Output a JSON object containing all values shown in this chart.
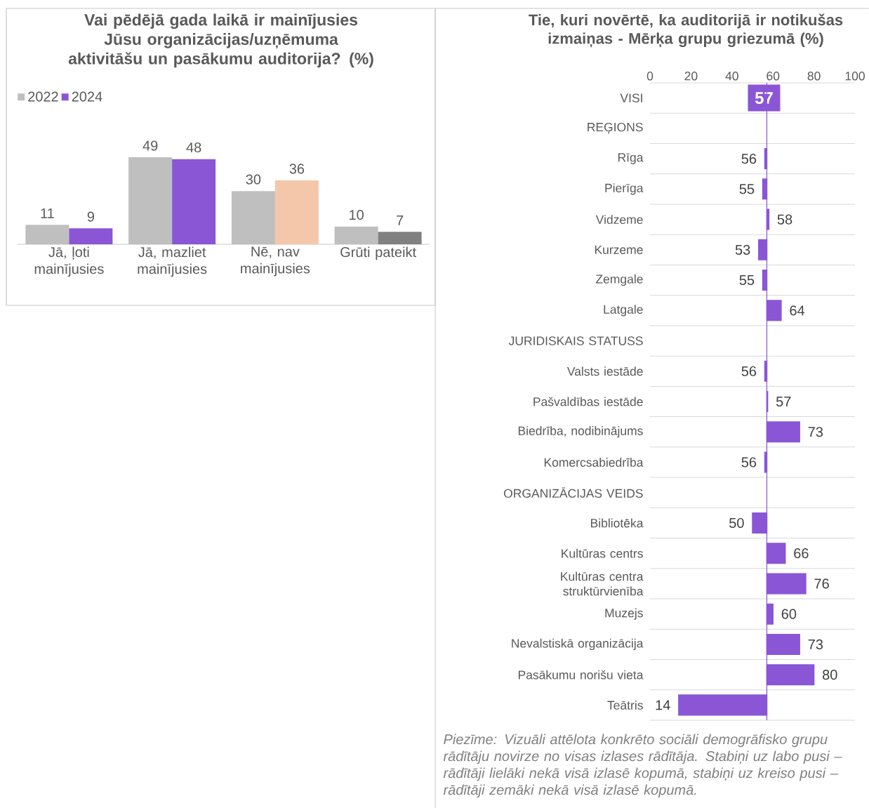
{
  "chart_data": [
    {
      "type": "bar",
      "title": "Vai pēdējā gada laikā ir mainījusies Jūsu organizācijas/uzņēmuma aktivitāšu un pasākumu auditorija? (%)",
      "categories": [
        "Jā, ļoti mainījusies",
        "Jā, mazliet mainījusies",
        "Nē, nav mainījusies",
        "Grūti pateikt"
      ],
      "series": [
        {
          "name": "2022",
          "color": "#bfbfbf",
          "colors": [
            "#bfbfbf",
            "#bfbfbf",
            "#bfbfbf",
            "#bfbfbf"
          ],
          "values": [
            11,
            49,
            30,
            10
          ]
        },
        {
          "name": "2024",
          "color": "#8a56d6",
          "colors": [
            "#8a56d6",
            "#8a56d6",
            "#f4c6aa",
            "#808080"
          ],
          "values": [
            9,
            48,
            36,
            7
          ]
        }
      ],
      "data_labels": true,
      "legend": "top left"
    },
    {
      "type": "bar",
      "orientation": "horizontal",
      "title": "Tie, kuri novērtē, ka auditorijā ir notikušas izmaiņas - Mērķa grupu griezumā (%)",
      "categories": [
        "VISI",
        "REĢIONS",
        "Rīga",
        "Pierīga",
        "Vidzeme",
        "Kurzeme",
        "Zemgale",
        "Latgale",
        "JURIDISKAIS STATUSS",
        "Valsts iestāde",
        "Pašvaldības iestāde",
        "Biedrība, nodibinājums",
        "Komercsabiedrība",
        "ORGANIZĀCIJAS VEIDS",
        "Bibliotēka",
        "Kultūras centrs",
        "Kultūras centra struktūrvienība",
        "Muzejs",
        "Nevalstiskā organizācija",
        "Pasākumu norišu vieta",
        "Teātris"
      ],
      "base": [
        null,
        null,
        57,
        57,
        57,
        57,
        57,
        57,
        null,
        57,
        57,
        57,
        57,
        null,
        57,
        57,
        57,
        57,
        57,
        57,
        57
      ],
      "values": [
        null,
        null,
        -1,
        -2,
        1,
        -4,
        -2,
        7,
        null,
        -1,
        0.4,
        16,
        -1,
        null,
        -7,
        9,
        19,
        3,
        16,
        23,
        -43
      ],
      "value_labels": [
        "57",
        null,
        "56",
        "55",
        "58",
        "53",
        "55",
        "64",
        null,
        "56",
        "57",
        "73",
        "56",
        null,
        "50",
        "66",
        "76",
        "60",
        "73",
        "80",
        "14"
      ],
      "color": "#8a56d6",
      "xlim": [
        0,
        100
      ],
      "xticks": [
        0,
        20,
        40,
        60,
        80,
        100
      ],
      "ref_lines": [
        {
          "axis": "x",
          "value": 57,
          "color": "#8a56d6"
        }
      ],
      "grid": "y",
      "annotations": [
        "Piezīme: Vizuāli attēlota konkrēto sociāli demogrāfisko grupu rādītāju novirze no visas izlases rādītāja. Stabiņi uz labo pusi – rādītāji lielāki nekā visā izlasē kopumā, stabiņi uz kreiso pusi – rādītāji zemāki nekā visā izlasē kopumā."
      ]
    }
  ]
}
